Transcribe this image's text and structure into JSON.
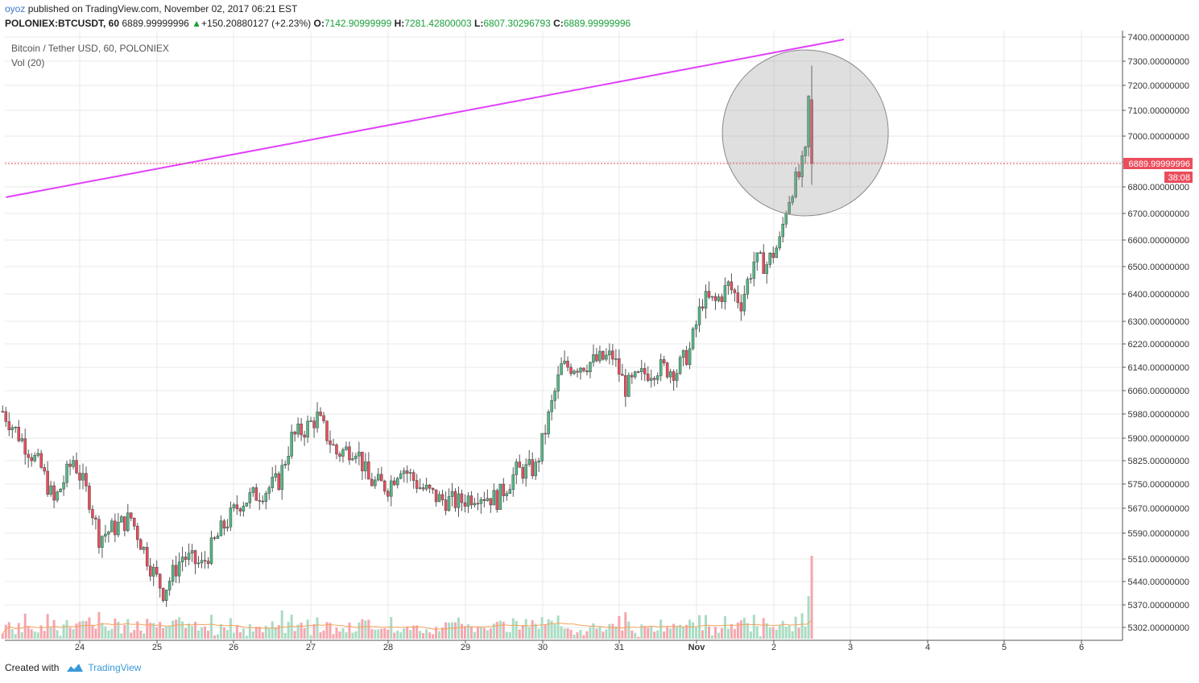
{
  "header": {
    "user": "oyoz",
    "published": "published on TradingView.com, November 02, 2017 06:21 EST",
    "symbol": "POLONIEX:BTCUSDT, 60",
    "price": "6889.99999996",
    "change": "+150.20880127 (+2.23%)",
    "o_label": "O:",
    "o_value": "7142.90999999",
    "h_label": "H:",
    "h_value": "7281.42800003",
    "l_label": "L:",
    "l_value": "6807.30296793",
    "c_label": "C:",
    "c_value": "6889.99999996"
  },
  "legend": {
    "title": "Bitcoin / Tether USD, 60, POLONIEX",
    "vol": "Vol (20)"
  },
  "footer": {
    "created": "Created with",
    "brand": "TradingView"
  },
  "colors": {
    "up": "#53b987",
    "down": "#eb4d5c",
    "vol_up": "#a9dcc3",
    "vol_down": "#f5a6ae",
    "trendline": "#e040fb",
    "vol_ma": "#f5a35c",
    "price_label_bg": "#eb4d5c",
    "grid": "#e9e9ea"
  },
  "chart_data": {
    "type": "candlestick",
    "title": "Bitcoin / Tether USD, 60, POLONIEX",
    "x_tick_labels": [
      "24",
      "25",
      "26",
      "27",
      "28",
      "29",
      "30",
      "31",
      "Nov",
      "2",
      "3",
      "4",
      "5",
      "6"
    ],
    "y_tick_labels": [
      "7400.00000000",
      "7300.00000000",
      "7200.00000000",
      "7100.00000000",
      "7000.00000000",
      "6900.00000000",
      "6800.00000000",
      "6700.00000000",
      "6600.00000000",
      "6500.00000000",
      "6400.00000000",
      "6300.00000000",
      "6220.00000000",
      "6140.00000000",
      "6060.00000000",
      "5980.00000000",
      "5900.00000000",
      "5825.00000000",
      "5750.00000000",
      "5670.00000000",
      "5590.00000000",
      "5510.00000000",
      "5440.00000000",
      "5370.00000000",
      "5302.00000000"
    ],
    "y_scale": "log",
    "ylim": [
      5270,
      7440
    ],
    "last_price_label": "6889.99999996",
    "countdown_label": "38:08",
    "last_candle": {
      "open": 7142.90999999,
      "high": 7281.42800003,
      "low": 6807.30296793,
      "close": 6889.99999996
    },
    "trendline": {
      "from": [
        "Oct 23 01:00",
        6760
      ],
      "to": [
        "Nov 2 22:00",
        7390
      ]
    },
    "highlight_circle": {
      "center": [
        "Nov 2 10:00",
        7010
      ],
      "note": "grey circle around final candles"
    },
    "close_path": [
      {
        "t": "Oct 23 00:00",
        "close": 5990
      },
      {
        "t": "Oct 23 12:00",
        "close": 5800
      },
      {
        "t": "Oct 23 16:00",
        "close": 5690
      },
      {
        "t": "Oct 23 22:00",
        "close": 5830
      },
      {
        "t": "Oct 24 03:00",
        "close": 5700
      },
      {
        "t": "Oct 24 06:00",
        "close": 5580
      },
      {
        "t": "Oct 24 16:00",
        "close": 5640
      },
      {
        "t": "Oct 24 22:00",
        "close": 5490
      },
      {
        "t": "Oct 25 02:00",
        "close": 5410
      },
      {
        "t": "Oct 25 08:00",
        "close": 5520
      },
      {
        "t": "Oct 25 14:00",
        "close": 5490
      },
      {
        "t": "Oct 25 20:00",
        "close": 5600
      },
      {
        "t": "Oct 26 02:00",
        "close": 5690
      },
      {
        "t": "Oct 26 10:00",
        "close": 5730
      },
      {
        "t": "Oct 26 14:00",
        "close": 5760
      },
      {
        "t": "Oct 26 18:00",
        "close": 5900
      },
      {
        "t": "Oct 26 22:00",
        "close": 5930
      },
      {
        "t": "Oct 27 02:00",
        "close": 5970
      },
      {
        "t": "Oct 27 08:00",
        "close": 5850
      },
      {
        "t": "Oct 27 14:00",
        "close": 5870
      },
      {
        "t": "Oct 27 18:00",
        "close": 5760
      },
      {
        "t": "Oct 28 00:00",
        "close": 5740
      },
      {
        "t": "Oct 28 04:00",
        "close": 5810
      },
      {
        "t": "Oct 28 10:00",
        "close": 5740
      },
      {
        "t": "Oct 28 16:00",
        "close": 5700
      },
      {
        "t": "Oct 28 22:00",
        "close": 5690
      },
      {
        "t": "Oct 29 04:00",
        "close": 5720
      },
      {
        "t": "Oct 29 10:00",
        "close": 5700
      },
      {
        "t": "Oct 29 16:00",
        "close": 5790
      },
      {
        "t": "Oct 29 22:00",
        "close": 5800
      },
      {
        "t": "Oct 30 02:00",
        "close": 5970
      },
      {
        "t": "Oct 30 06:00",
        "close": 6140
      },
      {
        "t": "Oct 30 12:00",
        "close": 6150
      },
      {
        "t": "Oct 30 16:00",
        "close": 6160
      },
      {
        "t": "Oct 30 22:00",
        "close": 6180
      },
      {
        "t": "Oct 31 02:00",
        "close": 6070
      },
      {
        "t": "Oct 31 08:00",
        "close": 6120
      },
      {
        "t": "Oct 31 12:00",
        "close": 6140
      },
      {
        "t": "Oct 31 18:00",
        "close": 6130
      },
      {
        "t": "Oct 31 22:00",
        "close": 6200
      },
      {
        "t": "Nov 1 02:00",
        "close": 6380
      },
      {
        "t": "Nov 1 06:00",
        "close": 6370
      },
      {
        "t": "Nov 1 10:00",
        "close": 6430
      },
      {
        "t": "Nov 1 14:00",
        "close": 6370
      },
      {
        "t": "Nov 1 18:00",
        "close": 6520
      },
      {
        "t": "Nov 1 22:00",
        "close": 6510
      },
      {
        "t": "Nov 2 02:00",
        "close": 6590
      },
      {
        "t": "Nov 2 04:00",
        "close": 6720
      },
      {
        "t": "Nov 2 06:00",
        "close": 6800
      },
      {
        "t": "Nov 2 08:00",
        "close": 6840
      },
      {
        "t": "Nov 2 10:00",
        "close": 6920
      },
      {
        "t": "Nov 2 11:00",
        "close": 7142.90999999
      },
      {
        "t": "Nov 2 12:00",
        "close": 6889.99999996
      }
    ],
    "volume_series": {
      "name": "Vol (20)",
      "ma_length": 20
    }
  }
}
